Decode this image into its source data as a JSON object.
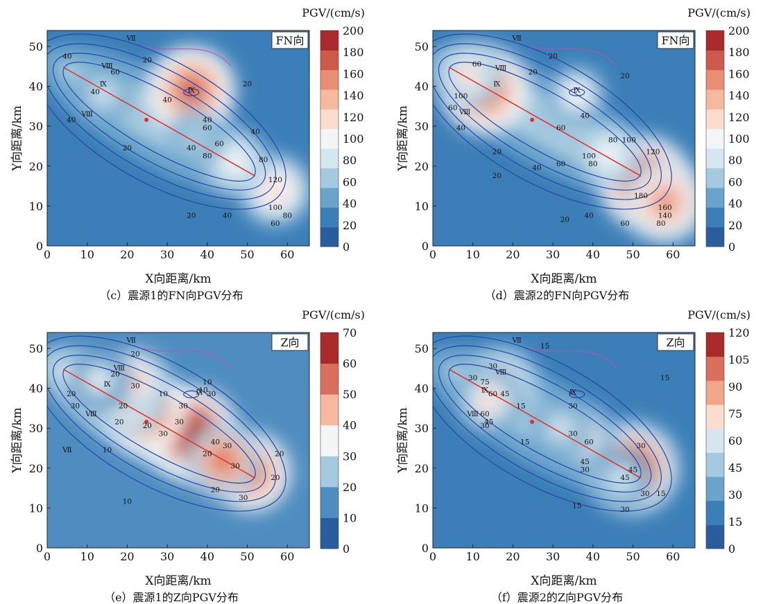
{
  "xlabel": "X向距离/km",
  "ylabel": "Y向距离/km",
  "xticks": [
    0,
    10,
    20,
    30,
    40,
    50,
    60
  ],
  "yticks": [
    0,
    10,
    20,
    30,
    40,
    50
  ],
  "colorbar_title": "PGV/(cm/s)",
  "chart_data": [
    {
      "type": "heatmap",
      "caption": "（c）震源1的FN向PGV分布",
      "corner_label": "FN向",
      "xlabel": "X向距离/km",
      "ylabel": "Y向距离/km",
      "xlim": [
        0,
        65.5
      ],
      "ylim": [
        0,
        54
      ],
      "colorbar": {
        "title": "PGV/(cm/s)",
        "ticks": [
          0,
          20,
          40,
          60,
          80,
          100,
          120,
          140,
          160,
          180,
          200
        ],
        "colors": [
          "#2b5d9e",
          "#3c7fb8",
          "#6aa4cc",
          "#a5c9df",
          "#d6e6f0",
          "#f3f5f6",
          "#fbddd0",
          "#f6b9a0",
          "#e78e74",
          "#cd5a4c",
          "#a82a2b"
        ]
      },
      "fault_trace": [
        [
          4,
          44.8
        ],
        [
          52,
          17.5
        ]
      ],
      "epicenter": [
        24.8,
        31.6
      ],
      "hotspots": [
        {
          "x": 36,
          "y": 39,
          "v": 190
        },
        {
          "x": 57,
          "y": 14,
          "v": 135
        },
        {
          "x": 47,
          "y": 21,
          "v": 110
        },
        {
          "x": 14,
          "y": 38,
          "v": 90
        },
        {
          "x": 37,
          "y": 27,
          "v": 75
        }
      ],
      "contour_labels": [
        {
          "x": 5,
          "y": 47,
          "t": "40"
        },
        {
          "x": 25,
          "y": 46,
          "t": "20"
        },
        {
          "x": 12,
          "y": 38,
          "t": "40"
        },
        {
          "x": 6,
          "y": 31,
          "t": "40"
        },
        {
          "x": 17,
          "y": 43,
          "t": "60"
        },
        {
          "x": 30,
          "y": 36,
          "t": "40"
        },
        {
          "x": 40,
          "y": 31,
          "t": "40"
        },
        {
          "x": 36,
          "y": 24,
          "t": "40"
        },
        {
          "x": 20,
          "y": 24,
          "t": "20"
        },
        {
          "x": 40,
          "y": 29,
          "t": "60"
        },
        {
          "x": 43,
          "y": 25,
          "t": "60"
        },
        {
          "x": 40,
          "y": 22,
          "t": "80"
        },
        {
          "x": 52,
          "y": 28,
          "t": "40"
        },
        {
          "x": 54,
          "y": 21,
          "t": "80"
        },
        {
          "x": 57,
          "y": 16,
          "t": "120"
        },
        {
          "x": 57,
          "y": 9,
          "t": "100"
        },
        {
          "x": 60,
          "y": 7,
          "t": "80"
        },
        {
          "x": 57,
          "y": 5,
          "t": "60"
        },
        {
          "x": 45,
          "y": 7,
          "t": "40"
        },
        {
          "x": 36,
          "y": 7,
          "t": "20"
        },
        {
          "x": 50,
          "y": 40,
          "t": "20"
        }
      ],
      "intensity_labels": [
        {
          "x": 21,
          "y": 51.5,
          "t": "Ⅶ"
        },
        {
          "x": 15,
          "y": 44.5,
          "t": "Ⅷ"
        },
        {
          "x": 14,
          "y": 40,
          "t": "Ⅸ"
        },
        {
          "x": 10,
          "y": 32.5,
          "t": "Ⅷ"
        },
        {
          "x": 36,
          "y": 38.5,
          "t": "Ⅸ"
        }
      ]
    },
    {
      "type": "heatmap",
      "caption": "（d）震源2的FN向PGV分布",
      "corner_label": "FN向",
      "xlabel": "X向距离/km",
      "ylabel": "Y向距离/km",
      "xlim": [
        0,
        65.5
      ],
      "ylim": [
        0,
        54
      ],
      "colorbar": {
        "title": "PGV/(cm/s)",
        "ticks": [
          0,
          20,
          40,
          60,
          80,
          100,
          120,
          140,
          160,
          180,
          200
        ],
        "colors": [
          "#2b5d9e",
          "#3c7fb8",
          "#6aa4cc",
          "#a5c9df",
          "#d6e6f0",
          "#f3f5f6",
          "#fbddd0",
          "#f6b9a0",
          "#e78e74",
          "#cd5a4c",
          "#a82a2b"
        ]
      },
      "fault_trace": [
        [
          4,
          44.8
        ],
        [
          52,
          17.5
        ]
      ],
      "epicenter": [
        24.8,
        31.6
      ],
      "hotspots": [
        {
          "x": 53,
          "y": 16,
          "v": 200
        },
        {
          "x": 58,
          "y": 11,
          "v": 170
        },
        {
          "x": 13,
          "y": 39,
          "v": 185
        },
        {
          "x": 9,
          "y": 43,
          "v": 120
        },
        {
          "x": 36,
          "y": 38,
          "v": 100
        },
        {
          "x": 44,
          "y": 23,
          "v": 110
        }
      ],
      "contour_labels": [
        {
          "x": 11,
          "y": 45,
          "t": "60"
        },
        {
          "x": 30,
          "y": 47,
          "t": "20"
        },
        {
          "x": 25,
          "y": 43,
          "t": "20"
        },
        {
          "x": 7,
          "y": 37,
          "t": "100"
        },
        {
          "x": 5,
          "y": 34,
          "t": "60"
        },
        {
          "x": 7,
          "y": 29,
          "t": "40"
        },
        {
          "x": 16,
          "y": 23,
          "t": "20"
        },
        {
          "x": 38,
          "y": 32,
          "t": "40"
        },
        {
          "x": 32,
          "y": 29,
          "t": "60"
        },
        {
          "x": 45,
          "y": 26,
          "t": "80"
        },
        {
          "x": 49,
          "y": 26,
          "t": "100"
        },
        {
          "x": 55,
          "y": 23,
          "t": "120"
        },
        {
          "x": 39,
          "y": 22,
          "t": "100"
        },
        {
          "x": 40,
          "y": 20,
          "t": "80"
        },
        {
          "x": 32,
          "y": 20,
          "t": "60"
        },
        {
          "x": 26,
          "y": 19,
          "t": "40"
        },
        {
          "x": 16,
          "y": 17,
          "t": "20"
        },
        {
          "x": 52,
          "y": 12,
          "t": "180"
        },
        {
          "x": 58,
          "y": 9,
          "t": "160"
        },
        {
          "x": 58,
          "y": 7,
          "t": "140"
        },
        {
          "x": 57,
          "y": 5,
          "t": "80"
        },
        {
          "x": 48,
          "y": 5,
          "t": "60"
        },
        {
          "x": 39,
          "y": 7,
          "t": "40"
        },
        {
          "x": 33,
          "y": 6,
          "t": "20"
        },
        {
          "x": 48,
          "y": 42,
          "t": "20"
        }
      ],
      "intensity_labels": [
        {
          "x": 21,
          "y": 51.5,
          "t": "Ⅶ"
        },
        {
          "x": 17,
          "y": 44,
          "t": "Ⅷ"
        },
        {
          "x": 16,
          "y": 40,
          "t": "Ⅸ"
        },
        {
          "x": 8,
          "y": 33,
          "t": "Ⅷ"
        },
        {
          "x": 36,
          "y": 38.5,
          "t": "Ⅸ"
        }
      ]
    },
    {
      "type": "heatmap",
      "caption": "（e）震源1的Z向PGV分布",
      "corner_label": "Z向",
      "xlabel": "X向距离/km",
      "ylabel": "Y向距离/km",
      "xlim": [
        0,
        65.5
      ],
      "ylim": [
        0,
        54
      ],
      "colorbar": {
        "title": "PGV/(cm/s)",
        "ticks": [
          0,
          10,
          20,
          30,
          40,
          50,
          60,
          70
        ],
        "colors": [
          "#2b5d9e",
          "#4f8dc0",
          "#a5c9df",
          "#f3f5f6",
          "#f6b9a0",
          "#d8705d",
          "#a82a2b"
        ]
      },
      "fault_trace": [
        [
          4,
          44.8
        ],
        [
          52,
          17.5
        ]
      ],
      "epicenter": [
        24.8,
        31.6
      ],
      "hotspots": [
        {
          "x": 36,
          "y": 29,
          "v": 70
        },
        {
          "x": 25,
          "y": 34,
          "v": 58
        },
        {
          "x": 51,
          "y": 19,
          "v": 55
        },
        {
          "x": 44,
          "y": 22,
          "v": 50
        },
        {
          "x": 21,
          "y": 37,
          "v": 45
        },
        {
          "x": 22,
          "y": 42,
          "v": 40
        },
        {
          "x": 13,
          "y": 42,
          "v": 35
        }
      ],
      "contour_labels": [
        {
          "x": 22,
          "y": 48,
          "t": "20"
        },
        {
          "x": 29,
          "y": 38,
          "t": "10"
        },
        {
          "x": 39,
          "y": 39,
          "t": "10"
        },
        {
          "x": 40,
          "y": 41,
          "t": "10"
        },
        {
          "x": 41,
          "y": 38,
          "t": "30"
        },
        {
          "x": 17,
          "y": 43,
          "t": "20"
        },
        {
          "x": 22,
          "y": 40,
          "t": "30"
        },
        {
          "x": 6,
          "y": 38,
          "t": "20"
        },
        {
          "x": 19,
          "y": 35,
          "t": "20"
        },
        {
          "x": 7,
          "y": 35,
          "t": "30"
        },
        {
          "x": 18,
          "y": 31,
          "t": "20"
        },
        {
          "x": 25,
          "y": 30,
          "t": "20"
        },
        {
          "x": 29,
          "y": 28,
          "t": "30"
        },
        {
          "x": 33,
          "y": 31,
          "t": "30"
        },
        {
          "x": 34,
          "y": 35,
          "t": "30"
        },
        {
          "x": 42,
          "y": 26,
          "t": "40"
        },
        {
          "x": 40,
          "y": 23,
          "t": "20"
        },
        {
          "x": 45,
          "y": 25,
          "t": "30"
        },
        {
          "x": 47,
          "y": 20,
          "t": "30"
        },
        {
          "x": 58,
          "y": 23,
          "t": "20"
        },
        {
          "x": 57,
          "y": 17,
          "t": "20"
        },
        {
          "x": 42,
          "y": 14,
          "t": "20"
        },
        {
          "x": 49,
          "y": 12,
          "t": "30"
        },
        {
          "x": 15,
          "y": 24,
          "t": "10"
        },
        {
          "x": 20,
          "y": 11,
          "t": "10"
        }
      ],
      "intensity_labels": [
        {
          "x": 21,
          "y": 51.5,
          "t": "Ⅶ"
        },
        {
          "x": 18,
          "y": 44.5,
          "t": "Ⅷ"
        },
        {
          "x": 15,
          "y": 40.5,
          "t": "Ⅸ"
        },
        {
          "x": 11,
          "y": 33,
          "t": "Ⅷ"
        },
        {
          "x": 38,
          "y": 38.5,
          "t": "Ⅸ"
        },
        {
          "x": 5,
          "y": 24,
          "t": "Ⅶ"
        }
      ]
    },
    {
      "type": "heatmap",
      "caption": "（f）震源2的Z向PGV分布",
      "corner_label": "Z向",
      "xlabel": "X向距离/km",
      "ylabel": "Y向距离/km",
      "xlim": [
        0,
        65.5
      ],
      "ylim": [
        0,
        54
      ],
      "colorbar": {
        "title": "PGV/(cm/s)",
        "ticks": [
          0,
          15,
          30,
          45,
          60,
          75,
          90,
          105,
          120
        ],
        "colors": [
          "#2b5d9e",
          "#3c7fb8",
          "#6aa4cc",
          "#a5c9df",
          "#d6e6f0",
          "#fbddd0",
          "#f0a68b",
          "#d8705d",
          "#a82a2b"
        ]
      },
      "fault_trace": [
        [
          4,
          44.8
        ],
        [
          52,
          17.5
        ]
      ],
      "epicenter": [
        24.8,
        31.6
      ],
      "hotspots": [
        {
          "x": 50,
          "y": 20,
          "v": 120
        },
        {
          "x": 17,
          "y": 41,
          "v": 90
        },
        {
          "x": 14,
          "y": 37,
          "v": 75
        },
        {
          "x": 37,
          "y": 28,
          "v": 75
        },
        {
          "x": 47,
          "y": 17,
          "v": 60
        },
        {
          "x": 32,
          "y": 30,
          "v": 60
        }
      ],
      "contour_labels": [
        {
          "x": 28,
          "y": 50,
          "t": "15"
        },
        {
          "x": 15,
          "y": 45,
          "t": "30"
        },
        {
          "x": 13,
          "y": 41,
          "t": "75"
        },
        {
          "x": 10,
          "y": 42,
          "t": "30"
        },
        {
          "x": 15,
          "y": 38,
          "t": "60"
        },
        {
          "x": 18,
          "y": 38,
          "t": "45"
        },
        {
          "x": 13,
          "y": 33,
          "t": "60"
        },
        {
          "x": 14,
          "y": 31,
          "t": "45"
        },
        {
          "x": 13,
          "y": 30,
          "t": "30"
        },
        {
          "x": 22,
          "y": 35,
          "t": "15"
        },
        {
          "x": 35,
          "y": 35,
          "t": "30"
        },
        {
          "x": 35,
          "y": 28,
          "t": "30"
        },
        {
          "x": 39,
          "y": 26,
          "t": "60"
        },
        {
          "x": 23,
          "y": 26,
          "t": "15"
        },
        {
          "x": 38,
          "y": 21,
          "t": "45"
        },
        {
          "x": 38,
          "y": 19,
          "t": "30"
        },
        {
          "x": 52,
          "y": 25,
          "t": "30"
        },
        {
          "x": 50,
          "y": 19,
          "t": "45"
        },
        {
          "x": 48,
          "y": 17,
          "t": "45"
        },
        {
          "x": 53,
          "y": 13,
          "t": "30"
        },
        {
          "x": 57,
          "y": 13,
          "t": "15"
        },
        {
          "x": 48,
          "y": 9,
          "t": "30"
        },
        {
          "x": 36,
          "y": 10,
          "t": "15"
        },
        {
          "x": 58,
          "y": 42,
          "t": "15"
        }
      ],
      "intensity_labels": [
        {
          "x": 21,
          "y": 51.5,
          "t": "Ⅶ"
        },
        {
          "x": 17,
          "y": 43.5,
          "t": "Ⅷ"
        },
        {
          "x": 13,
          "y": 39,
          "t": "Ⅸ"
        },
        {
          "x": 10,
          "y": 33,
          "t": "Ⅷ"
        },
        {
          "x": 35,
          "y": 38.5,
          "t": "Ⅸ"
        }
      ]
    }
  ]
}
